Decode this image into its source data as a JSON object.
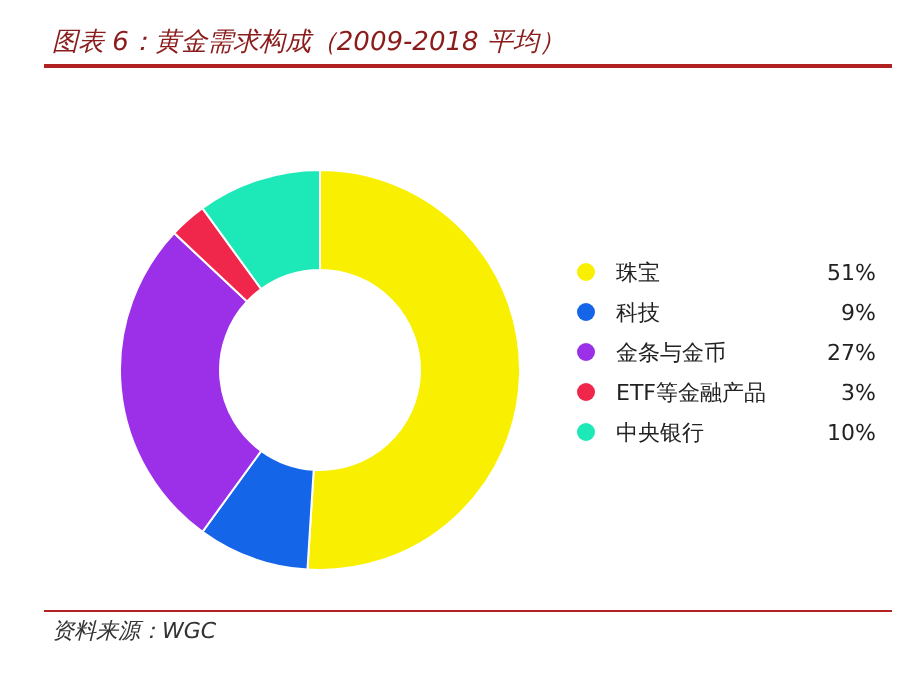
{
  "chart_data": {
    "type": "donut",
    "title": "图表 6：黄金需求构成（2009-2018 平均）",
    "categories": [
      "珠宝",
      "科技",
      "金条与金币",
      "ETF等金融产品",
      "中央银行"
    ],
    "values": [
      51,
      9,
      27,
      3,
      10
    ],
    "value_labels": [
      "51%",
      "9%",
      "27%",
      "3%",
      "10%"
    ],
    "colors": [
      "#f8f000",
      "#1565e8",
      "#9b30e8",
      "#f0264a",
      "#1de8b8"
    ],
    "legend": "right",
    "annotations": [
      "资料来源：WGC"
    ]
  }
}
